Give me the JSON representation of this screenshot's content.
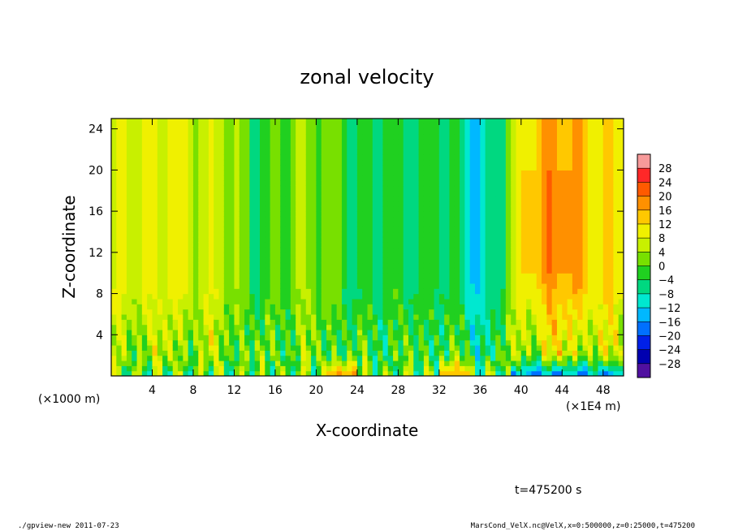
{
  "footer": {
    "left": "./gpview-new  2011-07-23",
    "right": "MarsCond_VelX.nc@VelX,x=0:500000,z=0:25000,t=475200"
  },
  "timestamp": "t=475200 s",
  "chart_data": {
    "type": "heatmap",
    "title": "zonal velocity",
    "xlabel": "X-coordinate",
    "ylabel": "Z-coordinate",
    "x_unit_left": "(×1000 m)",
    "x_unit_right": "(×1E4 m)",
    "xlim": [
      0,
      50
    ],
    "ylim": [
      0,
      25
    ],
    "x_ticks": [
      "4",
      "8",
      "12",
      "16",
      "20",
      "24",
      "28",
      "32",
      "36",
      "40",
      "44",
      "48"
    ],
    "x_tick_values": [
      4,
      8,
      12,
      16,
      20,
      24,
      28,
      32,
      36,
      40,
      44,
      48
    ],
    "y_ticks": [
      "4",
      "8",
      "12",
      "16",
      "20",
      "24"
    ],
    "y_tick_values": [
      4,
      8,
      12,
      16,
      20,
      24
    ],
    "colorbar": {
      "levels": [
        32,
        28,
        24,
        20,
        16,
        12,
        8,
        4,
        0,
        -4,
        -8,
        -12,
        -16,
        -20,
        -24,
        -28,
        -32
      ],
      "labels": [
        "28",
        "24",
        "20",
        "16",
        "12",
        "8",
        "4",
        "0",
        "−4",
        "−8",
        "−12",
        "−16",
        "−20",
        "−24",
        "−28"
      ],
      "label_values": [
        28,
        24,
        20,
        16,
        12,
        8,
        4,
        0,
        -4,
        -8,
        -12,
        -16,
        -20,
        -24,
        -28
      ],
      "colors": [
        "#f79a9a",
        "#ff2828",
        "#ff5a00",
        "#ff9000",
        "#ffc800",
        "#f0f000",
        "#c8f000",
        "#78e000",
        "#20d020",
        "#00d880",
        "#00e8d0",
        "#00b8ff",
        "#0070ff",
        "#0020e8",
        "#0000b0",
        "#5010a0"
      ]
    },
    "field_description_levels": {
      "columns_x": [
        0,
        2,
        4,
        6,
        8,
        10,
        12,
        14,
        16,
        18,
        20,
        22,
        24,
        26,
        28,
        30,
        32,
        34,
        36,
        38,
        40,
        42,
        44,
        46,
        48,
        50
      ],
      "upper_values": [
        6,
        9,
        7,
        10,
        6,
        7,
        4,
        -4,
        0,
        3,
        2,
        0,
        -6,
        -2,
        -3,
        -4,
        -2,
        -6,
        -12,
        -4,
        10,
        14,
        17,
        14,
        11,
        10
      ]
    }
  }
}
